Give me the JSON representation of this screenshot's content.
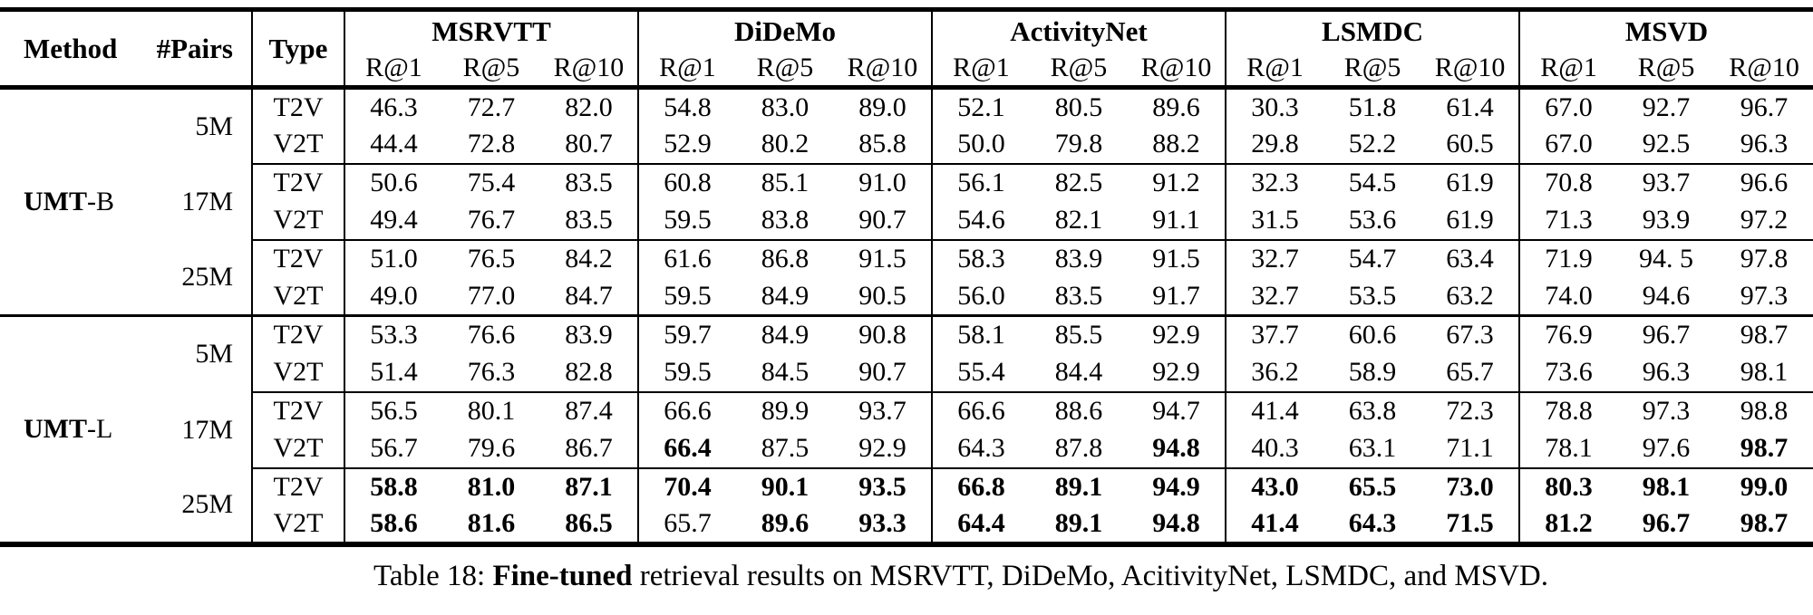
{
  "table": {
    "header": {
      "method": "Method",
      "pairs": "#Pairs",
      "type": "Type",
      "groups": [
        "MSRVTT",
        "DiDeMo",
        "ActivityNet",
        "LSMDC",
        "MSVD"
      ],
      "metrics": [
        "R@1",
        "R@5",
        "R@10"
      ]
    },
    "sections": [
      {
        "method": {
          "bold": "UMT",
          "rest": "-B"
        },
        "pair_groups": [
          {
            "pairs": "5M",
            "rows": [
              {
                "type": "T2V",
                "values": [
                  "46.3",
                  "72.7",
                  "82.0",
                  "54.8",
                  "83.0",
                  "89.0",
                  "52.1",
                  "80.5",
                  "89.6",
                  "30.3",
                  "51.8",
                  "61.4",
                  "67.0",
                  "92.7",
                  "96.7"
                ],
                "bold": []
              },
              {
                "type": "V2T",
                "values": [
                  "44.4",
                  "72.8",
                  "80.7",
                  "52.9",
                  "80.2",
                  "85.8",
                  "50.0",
                  "79.8",
                  "88.2",
                  "29.8",
                  "52.2",
                  "60.5",
                  "67.0",
                  "92.5",
                  "96.3"
                ],
                "bold": []
              }
            ]
          },
          {
            "pairs": "17M",
            "rows": [
              {
                "type": "T2V",
                "values": [
                  "50.6",
                  "75.4",
                  "83.5",
                  "60.8",
                  "85.1",
                  "91.0",
                  "56.1",
                  "82.5",
                  "91.2",
                  "32.3",
                  "54.5",
                  "61.9",
                  "70.8",
                  "93.7",
                  "96.6"
                ],
                "bold": []
              },
              {
                "type": "V2T",
                "values": [
                  "49.4",
                  "76.7",
                  "83.5",
                  "59.5",
                  "83.8",
                  "90.7",
                  "54.6",
                  "82.1",
                  "91.1",
                  "31.5",
                  "53.6",
                  "61.9",
                  "71.3",
                  "93.9",
                  "97.2"
                ],
                "bold": []
              }
            ]
          },
          {
            "pairs": "25M",
            "rows": [
              {
                "type": "T2V",
                "values": [
                  "51.0",
                  "76.5",
                  "84.2",
                  "61.6",
                  "86.8",
                  "91.5",
                  "58.3",
                  "83.9",
                  "91.5",
                  "32.7",
                  "54.7",
                  "63.4",
                  "71.9",
                  "94. 5",
                  "97.8"
                ],
                "bold": []
              },
              {
                "type": "V2T",
                "values": [
                  "49.0",
                  "77.0",
                  "84.7",
                  "59.5",
                  "84.9",
                  "90.5",
                  "56.0",
                  "83.5",
                  "91.7",
                  "32.7",
                  "53.5",
                  "63.2",
                  "74.0",
                  "94.6",
                  "97.3"
                ],
                "bold": []
              }
            ]
          }
        ]
      },
      {
        "method": {
          "bold": "UMT",
          "rest": "-L"
        },
        "pair_groups": [
          {
            "pairs": "5M",
            "rows": [
              {
                "type": "T2V",
                "values": [
                  "53.3",
                  "76.6",
                  "83.9",
                  "59.7",
                  "84.9",
                  "90.8",
                  "58.1",
                  "85.5",
                  "92.9",
                  "37.7",
                  "60.6",
                  "67.3",
                  "76.9",
                  "96.7",
                  "98.7"
                ],
                "bold": []
              },
              {
                "type": "V2T",
                "values": [
                  "51.4",
                  "76.3",
                  "82.8",
                  "59.5",
                  "84.5",
                  "90.7",
                  "55.4",
                  "84.4",
                  "92.9",
                  "36.2",
                  "58.9",
                  "65.7",
                  "73.6",
                  "96.3",
                  "98.1"
                ],
                "bold": []
              }
            ]
          },
          {
            "pairs": "17M",
            "rows": [
              {
                "type": "T2V",
                "values": [
                  "56.5",
                  "80.1",
                  "87.4",
                  "66.6",
                  "89.9",
                  "93.7",
                  "66.6",
                  "88.6",
                  "94.7",
                  "41.4",
                  "63.8",
                  "72.3",
                  "78.8",
                  "97.3",
                  "98.8"
                ],
                "bold": []
              },
              {
                "type": "V2T",
                "values": [
                  "56.7",
                  "79.6",
                  "86.7",
                  "66.4",
                  "87.5",
                  "92.9",
                  "64.3",
                  "87.8",
                  "94.8",
                  "40.3",
                  "63.1",
                  "71.1",
                  "78.1",
                  "97.6",
                  "98.7"
                ],
                "bold": [
                  3,
                  8,
                  14
                ]
              }
            ]
          },
          {
            "pairs": "25M",
            "rows": [
              {
                "type": "T2V",
                "values": [
                  "58.8",
                  "81.0",
                  "87.1",
                  "70.4",
                  "90.1",
                  "93.5",
                  "66.8",
                  "89.1",
                  "94.9",
                  "43.0",
                  "65.5",
                  "73.0",
                  "80.3",
                  "98.1",
                  "99.0"
                ],
                "bold": [
                  0,
                  1,
                  2,
                  3,
                  4,
                  5,
                  6,
                  7,
                  8,
                  9,
                  10,
                  11,
                  12,
                  13,
                  14
                ]
              },
              {
                "type": "V2T",
                "values": [
                  "58.6",
                  "81.6",
                  "86.5",
                  "65.7",
                  "89.6",
                  "93.3",
                  "64.4",
                  "89.1",
                  "94.8",
                  "41.4",
                  "64.3",
                  "71.5",
                  "81.2",
                  "96.7",
                  "98.7"
                ],
                "bold": [
                  0,
                  1,
                  2,
                  4,
                  5,
                  6,
                  7,
                  8,
                  9,
                  10,
                  11,
                  12,
                  13,
                  14
                ]
              }
            ]
          }
        ]
      }
    ]
  },
  "caption": {
    "prefix": "Table 18: ",
    "bold": "Fine-tuned",
    "suffix": " retrieval results on MSRVTT, DiDeMo, AcitivityNet, LSMDC, and MSVD."
  },
  "colors": {
    "text": "#000000",
    "background": "#ffffff",
    "border": "#000000"
  }
}
